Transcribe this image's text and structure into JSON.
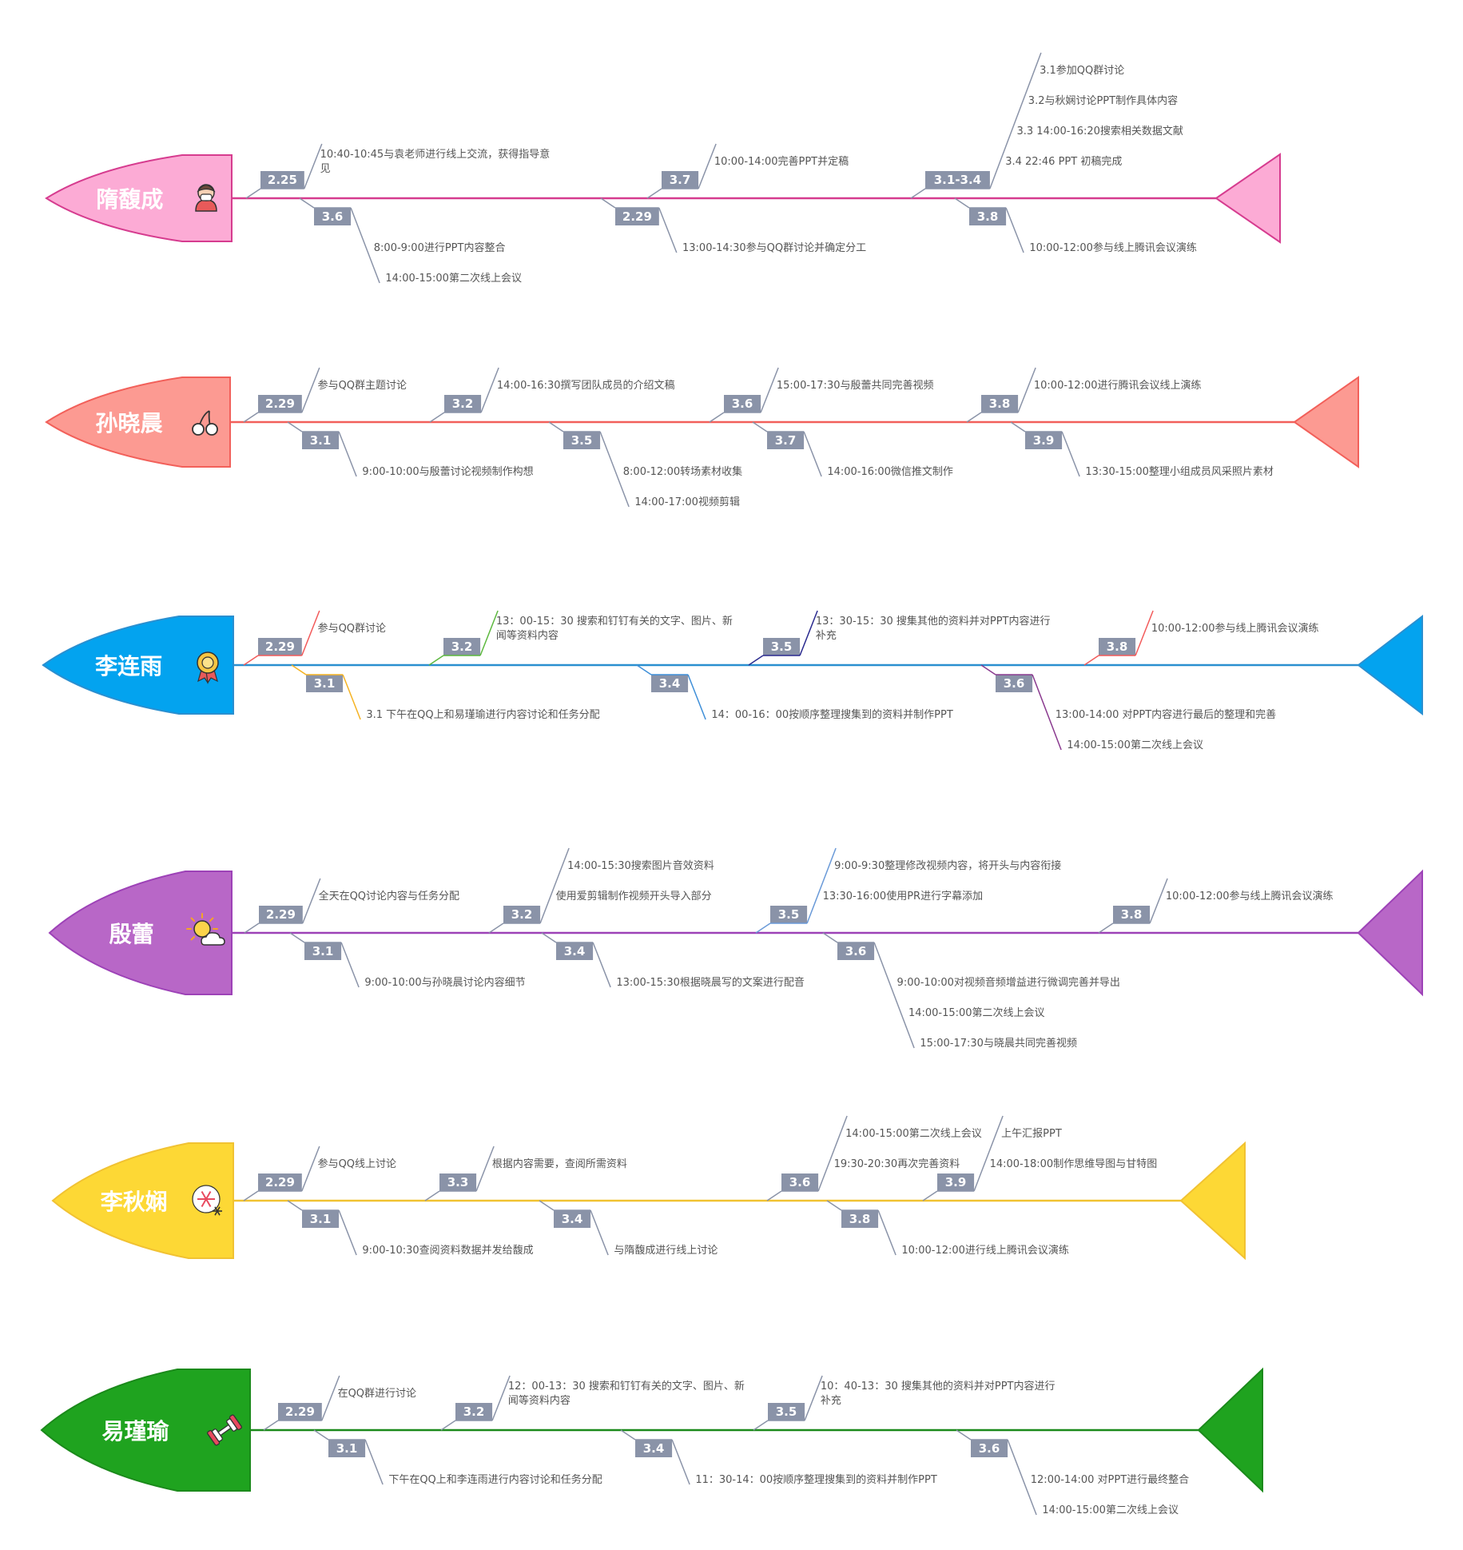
{
  "rows": [
    {
      "name": "隋馥成",
      "color": "#d63c8f",
      "head_fill": "#fcabd5",
      "icon": "person-mask-icon",
      "branches": [
        {
          "tag": "2.25",
          "side": "top",
          "items": [
            "10:40-10:45与袁老师进行线上交流，获得指导意见"
          ]
        },
        {
          "tag": "2.29",
          "side": "bottom",
          "items": [
            "13:00-14:30参与QQ群讨论并确定分工"
          ]
        },
        {
          "tag": "3.1-3.4",
          "side": "top",
          "items": [
            "3.1参加QQ群讨论",
            "3.2与秋娴讨论PPT制作具体内容",
            "3.3 14:00-16:20搜索相关数据文献",
            "3.4 22:46 PPT 初稿完成"
          ]
        },
        {
          "tag": "3.6",
          "side": "bottom",
          "items": [
            "8:00-9:00进行PPT内容整合",
            "14:00-15:00第二次线上会议"
          ]
        },
        {
          "tag": "3.7",
          "side": "top",
          "items": [
            "10:00-14:00完善PPT并定稿"
          ]
        },
        {
          "tag": "3.8",
          "side": "bottom",
          "items": [
            "10:00-12:00参与线上腾讯会议演练"
          ]
        }
      ]
    },
    {
      "name": "孙晓晨",
      "color": "#f2605a",
      "head_fill": "#fc9a92",
      "icon": "cherry-icon",
      "branches": [
        {
          "tag": "2.29",
          "side": "top",
          "items": [
            "参与QQ群主题讨论"
          ]
        },
        {
          "tag": "3.1",
          "side": "bottom",
          "items": [
            "9:00-10:00与殷蕾讨论视频制作构想"
          ]
        },
        {
          "tag": "3.2",
          "side": "top",
          "items": [
            "14:00-16:30撰写团队成员的介绍文稿"
          ]
        },
        {
          "tag": "3.5",
          "side": "bottom",
          "items": [
            "8:00-12:00转场素材收集",
            "14:00-17:00视频剪辑"
          ]
        },
        {
          "tag": "3.6",
          "side": "top",
          "items": [
            "15:00-17:30与殷蕾共同完善视频"
          ]
        },
        {
          "tag": "3.7",
          "side": "bottom",
          "items": [
            "14:00-16:00微信推文制作"
          ]
        },
        {
          "tag": "3.8",
          "side": "top",
          "items": [
            "10:00-12:00进行腾讯会议线上演练"
          ]
        },
        {
          "tag": "3.9",
          "side": "bottom",
          "items": [
            "13:30-15:00整理小组成员风采照片素材"
          ]
        }
      ]
    },
    {
      "name": "李连雨",
      "color": "#2a8fd0",
      "head_fill": "#03a3ef",
      "icon": "medal-icon",
      "branches": [
        {
          "tag": "2.29",
          "side": "top",
          "line": "#f25a5a",
          "items": [
            "参与QQ群讨论"
          ]
        },
        {
          "tag": "3.1",
          "side": "bottom",
          "line": "#f5b324",
          "items": [
            "3.1 下午在QQ上和易瑾瑜进行内容讨论和任务分配"
          ]
        },
        {
          "tag": "3.2",
          "side": "top",
          "line": "#5cb83e",
          "items": [
            "13：00-15：30 搜索和钉钉有关的文字、图片、新闻等资料内容"
          ]
        },
        {
          "tag": "3.4",
          "side": "bottom",
          "line": "#3f8fd8",
          "items": [
            "14：00-16：00按顺序整理搜集到的资料并制作PPT"
          ]
        },
        {
          "tag": "3.5",
          "side": "top",
          "line": "#2a2a8f",
          "items": [
            "13：30-15：30 搜集其他的资料并对PPT内容进行补充"
          ]
        },
        {
          "tag": "3.6",
          "side": "bottom",
          "line": "#8a3a8f",
          "items": [
            "13:00-14:00 对PPT内容进行最后的整理和完善",
            "14:00-15:00第二次线上会议"
          ]
        },
        {
          "tag": "3.8",
          "side": "top",
          "line": "#f25a5a",
          "items": [
            "10:00-12:00参与线上腾讯会议演练"
          ]
        }
      ]
    },
    {
      "name": "殷蕾",
      "color": "#9d42b7",
      "head_fill": "#b867c7",
      "icon": "sun-cloud-icon",
      "branches": [
        {
          "tag": "2.29",
          "side": "top",
          "items": [
            "全天在QQ讨论内容与任务分配"
          ]
        },
        {
          "tag": "3.1",
          "side": "bottom",
          "items": [
            "9:00-10:00与孙晓晨讨论内容细节"
          ]
        },
        {
          "tag": "3.2",
          "side": "top",
          "items": [
            "14:00-15:30搜索图片音效资料",
            "使用爱剪辑制作视频开头导入部分"
          ]
        },
        {
          "tag": "3.4",
          "side": "bottom",
          "items": [
            "13:00-15:30根据晓晨写的文案进行配音"
          ]
        },
        {
          "tag": "3.5",
          "side": "top",
          "line": "#6a9ad8",
          "items": [
            "9:00-9:30整理修改视频内容，将开头与内容衔接",
            "13:30-16:00使用PR进行字幕添加"
          ]
        },
        {
          "tag": "3.6",
          "side": "bottom",
          "items": [
            "9:00-10:00对视频音频增益进行微调完善并导出",
            "14:00-15:00第二次线上会议",
            "15:00-17:30与晓晨共同完善视频"
          ]
        },
        {
          "tag": "3.8",
          "side": "top",
          "items": [
            "10:00-12:00参与线上腾讯会议演练"
          ]
        }
      ]
    },
    {
      "name": "李秋娴",
      "color": "#f1c232",
      "head_fill": "#fdd835",
      "icon": "snowflake-icon",
      "branches": [
        {
          "tag": "2.29",
          "side": "top",
          "items": [
            "参与QQ线上讨论"
          ]
        },
        {
          "tag": "3.1",
          "side": "bottom",
          "items": [
            "9:00-10:30查阅资料数据并发给馥成"
          ]
        },
        {
          "tag": "3.3",
          "side": "top",
          "items": [
            "根据内容需要，查阅所需资料"
          ]
        },
        {
          "tag": "3.4",
          "side": "bottom",
          "items": [
            "与隋馥成进行线上讨论"
          ]
        },
        {
          "tag": "3.6",
          "side": "top",
          "items": [
            "14:00-15:00第二次线上会议",
            "19:30-20:30再次完善资料"
          ]
        },
        {
          "tag": "3.8",
          "side": "bottom",
          "items": [
            "10:00-12:00进行线上腾讯会议演练"
          ]
        },
        {
          "tag": "3.9",
          "side": "top",
          "items": [
            "上午汇报PPT",
            "14:00-18:00制作思维导图与甘特图"
          ]
        }
      ]
    },
    {
      "name": "易瑾瑜",
      "color": "#1b8a1b",
      "head_fill": "#1fa31f",
      "icon": "dumbbell-icon",
      "branches": [
        {
          "tag": "2.29",
          "side": "top",
          "items": [
            "在QQ群进行讨论"
          ]
        },
        {
          "tag": "3.1",
          "side": "bottom",
          "items": [
            "下午在QQ上和李连雨进行内容讨论和任务分配"
          ]
        },
        {
          "tag": "3.2",
          "side": "top",
          "items": [
            "12：00-13：30 搜索和钉钉有关的文字、图片、新闻等资料内容"
          ]
        },
        {
          "tag": "3.4",
          "side": "bottom",
          "items": [
            "11：30-14：00按顺序整理搜集到的资料并制作PPT"
          ]
        },
        {
          "tag": "3.5",
          "side": "top",
          "items": [
            "10：40-13：30 搜集其他的资料并对PPT内容进行补充"
          ]
        },
        {
          "tag": "3.6",
          "side": "bottom",
          "items": [
            "12:00-14:00 对PPT进行最终整合",
            "14:00-15:00第二次线上会议"
          ]
        }
      ]
    }
  ]
}
